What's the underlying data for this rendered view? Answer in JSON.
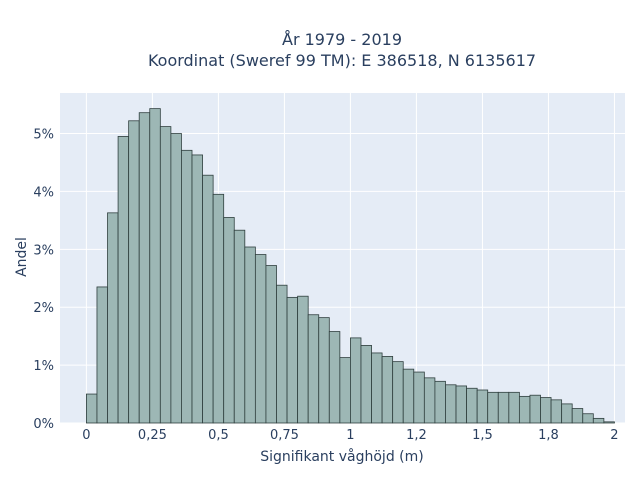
{
  "chart_data": {
    "type": "bar",
    "title_line1": "År 1979 - 2019",
    "title_line2": "Koordinat (Sweref 99 TM): E 386518, N 6135617",
    "xlabel": "Signifikant våghöjd (m)",
    "ylabel": "Andel",
    "xlim": [
      -0.1,
      2.04
    ],
    "ylim": [
      0,
      5.7
    ],
    "x_ticks": [
      {
        "value": 0,
        "label": "0"
      },
      {
        "value": 0.25,
        "label": "0,25"
      },
      {
        "value": 0.5,
        "label": "0,5"
      },
      {
        "value": 0.75,
        "label": "0,75"
      },
      {
        "value": 1,
        "label": "1"
      },
      {
        "value": 1.25,
        "label": "1,2"
      },
      {
        "value": 1.5,
        "label": "1,5"
      },
      {
        "value": 1.75,
        "label": "1,8"
      },
      {
        "value": 2,
        "label": "2"
      }
    ],
    "y_ticks": [
      {
        "value": 0,
        "label": "0%"
      },
      {
        "value": 1,
        "label": "1%"
      },
      {
        "value": 2,
        "label": "2%"
      },
      {
        "value": 3,
        "label": "3%"
      },
      {
        "value": 4,
        "label": "4%"
      },
      {
        "value": 5,
        "label": "5%"
      }
    ],
    "bin_width": 0.04,
    "bin_start": 0.0,
    "values": [
      0.5,
      2.35,
      3.63,
      4.95,
      5.22,
      5.36,
      5.43,
      5.12,
      5.0,
      4.71,
      4.63,
      4.28,
      3.95,
      3.55,
      3.33,
      3.04,
      2.91,
      2.72,
      2.38,
      2.17,
      2.19,
      1.87,
      1.82,
      1.58,
      1.13,
      1.47,
      1.34,
      1.21,
      1.15,
      1.06,
      0.93,
      0.88,
      0.78,
      0.72,
      0.66,
      0.64,
      0.6,
      0.57,
      0.53,
      0.53,
      0.53,
      0.46,
      0.48,
      0.44,
      0.4,
      0.33,
      0.25,
      0.16,
      0.08,
      0.02
    ],
    "bar_color": "#9db7b5",
    "bar_edge_color": "#2f3f3e",
    "plot_bg": "#e5ecf6",
    "grid": true
  }
}
